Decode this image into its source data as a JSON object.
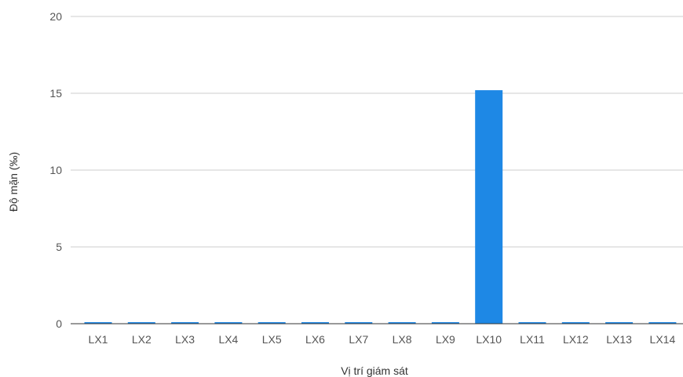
{
  "chart_data": {
    "type": "bar",
    "title": "",
    "xlabel": "Vị trí giám sát",
    "ylabel": "Độ mặn (‰)",
    "categories": [
      "LX1",
      "LX2",
      "LX3",
      "LX4",
      "LX5",
      "LX6",
      "LX7",
      "LX8",
      "LX9",
      "LX10",
      "LX11",
      "LX12",
      "LX13",
      "LX14"
    ],
    "values": [
      0.1,
      0.1,
      0.1,
      0.1,
      0.1,
      0.1,
      0.1,
      0.1,
      0.1,
      15.2,
      0.1,
      0.1,
      0.1,
      0.1
    ],
    "ylim": [
      0,
      20
    ],
    "yticks": [
      0,
      5,
      10,
      15,
      20
    ],
    "grid": true,
    "legend": "none",
    "bar_color": "#1E88E5",
    "grid_color": "#CCCCCC",
    "baseline_color": "#333333"
  }
}
